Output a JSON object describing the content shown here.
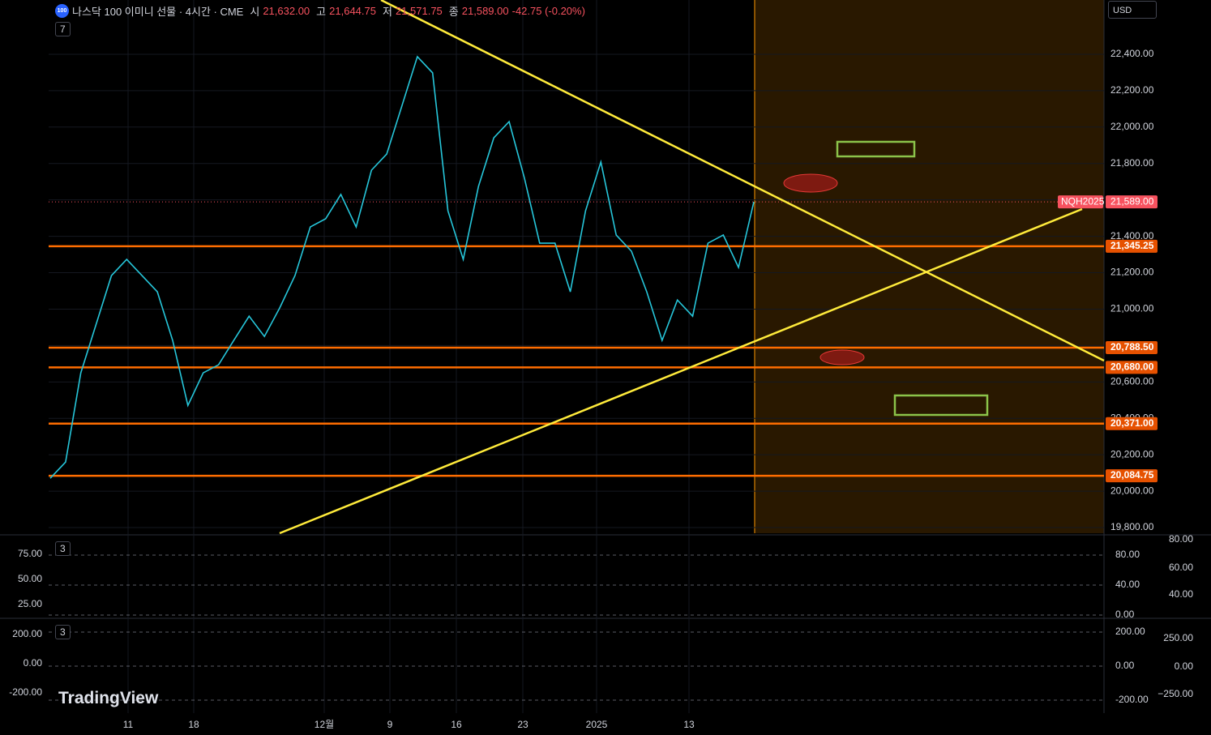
{
  "header": {
    "icon": "100",
    "title": "나스닥 100 이미니 선물 · 4시간 · CME",
    "ohlc": [
      {
        "label": "시",
        "value": "21,632.00"
      },
      {
        "label": "고",
        "value": "21,644.75"
      },
      {
        "label": "저",
        "value": "21,571.75"
      },
      {
        "label": "종",
        "value": "21,589.00"
      }
    ],
    "change": "-42.75 (-0.20%)",
    "indicators": "7"
  },
  "currency": "USD",
  "watermark": "TradingView",
  "chart_data": {
    "type": "line",
    "color": "#26c6da",
    "values": [
      20071,
      20160,
      20650,
      20917,
      21184,
      21273,
      21184,
      21095,
      20828,
      20471,
      20650,
      20694,
      20828,
      20961,
      20850,
      21006,
      21184,
      21451,
      21496,
      21630,
      21451,
      21763,
      21852,
      22119,
      22387,
      22298,
      21540,
      21273,
      21674,
      21941,
      22030,
      21719,
      21362,
      21362,
      21095,
      21540,
      21808,
      21407,
      21318,
      21095,
      20828,
      21050,
      20961,
      21362,
      21407,
      21229,
      21589
    ],
    "ylim": [
      19769,
      22698
    ],
    "yticks": [
      {
        "value": 22400,
        "label": "22,400.00"
      },
      {
        "value": 22200,
        "label": "22,200.00"
      },
      {
        "value": 22000,
        "label": "22,000.00"
      },
      {
        "value": 21800,
        "label": "21,800.00"
      },
      {
        "value": 21600,
        "label": "21,600.00"
      },
      {
        "value": 21400,
        "label": "21,400.00"
      },
      {
        "value": 21200,
        "label": "21,200.00"
      },
      {
        "value": 21000,
        "label": "21,000.00"
      },
      {
        "value": 20800,
        "label": "20,800.00"
      },
      {
        "value": 20600,
        "label": "20,600.00"
      },
      {
        "value": 20400,
        "label": "20,400.00"
      },
      {
        "value": 20200,
        "label": "20,200.00"
      },
      {
        "value": 20000,
        "label": "20,000.00"
      },
      {
        "value": 19800,
        "label": "19,800.00"
      }
    ],
    "levels": [
      {
        "value": 21345.25,
        "label": "21,345.25"
      },
      {
        "value": 20788.5,
        "label": "20,788.50"
      },
      {
        "value": 20680,
        "label": "20,680.00"
      },
      {
        "value": 20371,
        "label": "20,371.00"
      },
      {
        "value": 20084.75,
        "label": "20,084.75"
      }
    ],
    "last": {
      "symbol": "NQH2025",
      "value": 21589,
      "label": "21,589.00"
    },
    "x_tick_labels": [
      "11",
      "18",
      "12월",
      "9",
      "16",
      "23",
      "2025",
      "13"
    ]
  },
  "panes": [
    {
      "indicators": "3",
      "left_ticks": [
        "75.00",
        "50.00",
        "25.00"
      ],
      "axis_ticks": [
        "80.00",
        "40.00",
        "0.00"
      ],
      "right_ticks": [
        "80.00",
        "60.00",
        "40.00"
      ]
    },
    {
      "indicators": "3",
      "left_ticks": [
        "200.00",
        "0.00",
        "-200.00"
      ],
      "axis_ticks": [
        "200.00",
        "0.00",
        "-200.00"
      ],
      "right_ticks": [
        "250.00",
        "0.00",
        "−250.00"
      ]
    }
  ]
}
